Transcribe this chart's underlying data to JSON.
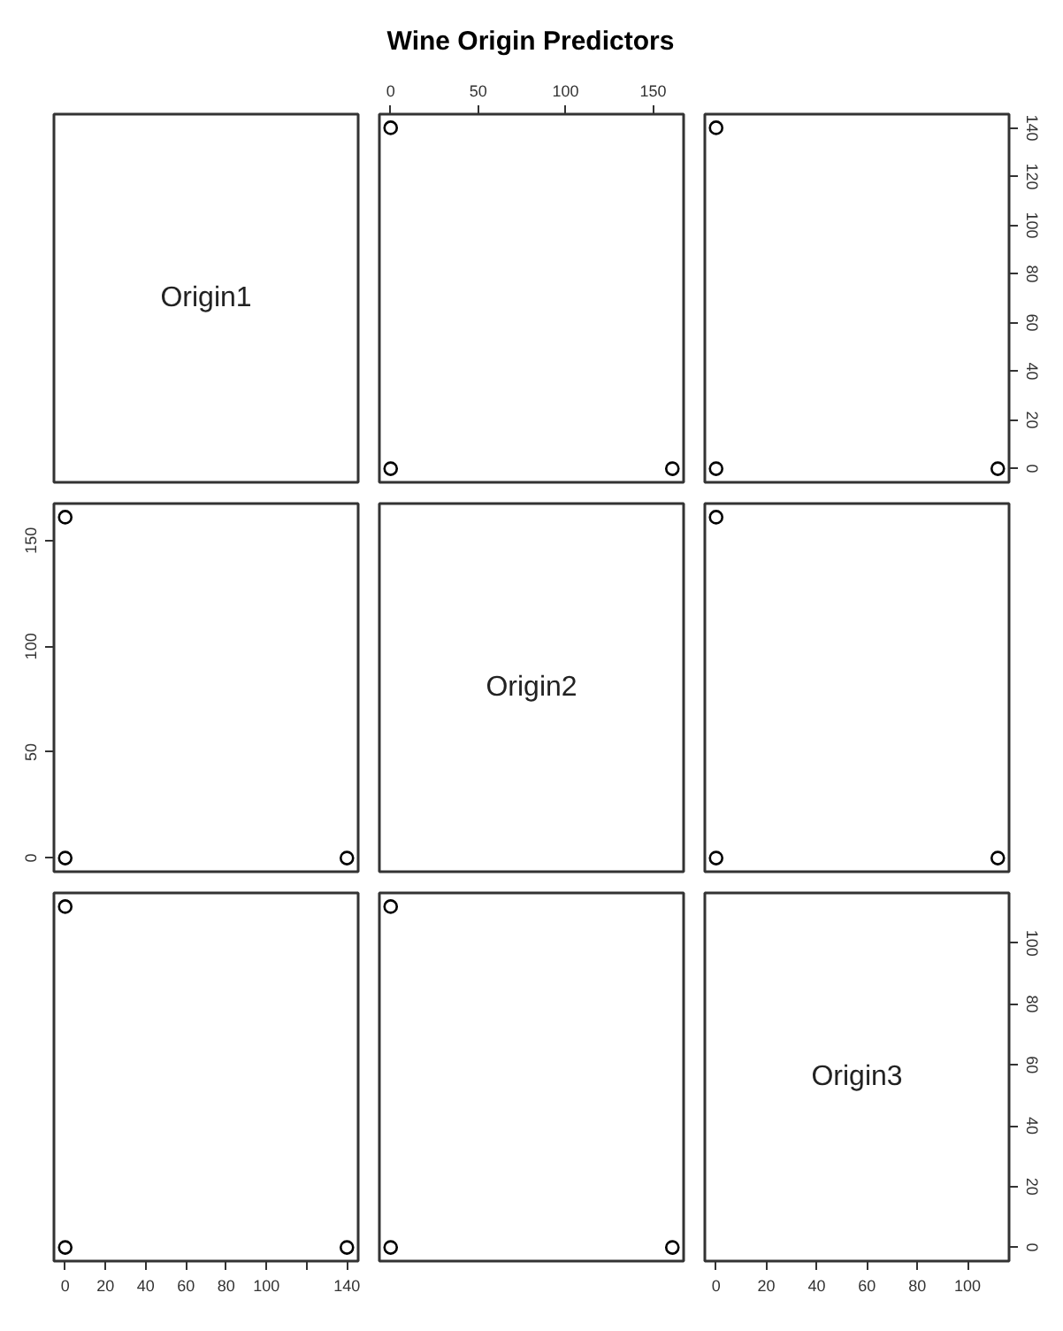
{
  "chart_data": [
    {
      "type": "other",
      "title": "Wine Origin Predictors",
      "annotations": [
        "Origin1"
      ]
    },
    {
      "type": "scatter",
      "marker": "circle",
      "tick_labels": "x",
      "xlim": [
        -6.44,
        167.44
      ],
      "xticks": [
        0,
        50,
        100,
        150
      ],
      "ylim": [
        -5.6,
        145.6
      ],
      "series": [
        {
          "color": "#000000",
          "x": [
            0,
            161,
            0
          ],
          "values": [
            140,
            0,
            0
          ]
        }
      ]
    },
    {
      "type": "scatter",
      "marker": "circle",
      "tick_labels": "y",
      "xlim": [
        -4.48,
        116.48
      ],
      "ylim": [
        -5.6,
        145.6
      ],
      "yticks": [
        0,
        20,
        40,
        60,
        80,
        100,
        120,
        140
      ],
      "series": [
        {
          "color": "#000000",
          "x": [
            0,
            0,
            112
          ],
          "values": [
            140,
            0,
            0
          ]
        }
      ]
    },
    {
      "type": "scatter",
      "marker": "circle",
      "tick_labels": "y",
      "xlim": [
        -5.6,
        145.6
      ],
      "ylim": [
        -6.44,
        167.44
      ],
      "yticks": [
        0,
        50,
        100,
        150
      ],
      "series": [
        {
          "color": "#000000",
          "x": [
            140,
            0,
            0
          ],
          "values": [
            0,
            161,
            0
          ]
        }
      ]
    },
    {
      "type": "other",
      "annotations": [
        "Origin2"
      ]
    },
    {
      "type": "scatter",
      "marker": "circle",
      "tick_labels": false,
      "xlim": [
        -4.48,
        116.48
      ],
      "ylim": [
        -6.44,
        167.44
      ],
      "series": [
        {
          "color": "#000000",
          "x": [
            0,
            0,
            112
          ],
          "values": [
            0,
            161,
            0
          ]
        }
      ]
    },
    {
      "type": "scatter",
      "marker": "circle",
      "tick_labels": "x",
      "xlim": [
        -5.6,
        145.6
      ],
      "xticks": [
        0,
        20,
        40,
        60,
        80,
        100,
        {
          "value": 120,
          "label": null
        },
        140
      ],
      "ylim": [
        -4.48,
        116.48
      ],
      "series": [
        {
          "color": "#000000",
          "x": [
            140,
            0,
            0
          ],
          "values": [
            0,
            0,
            112
          ]
        }
      ]
    },
    {
      "type": "scatter",
      "marker": "circle",
      "tick_labels": false,
      "xlim": [
        -6.44,
        167.44
      ],
      "ylim": [
        -4.48,
        116.48
      ],
      "series": [
        {
          "color": "#000000",
          "x": [
            0,
            161,
            0
          ],
          "values": [
            0,
            0,
            112
          ]
        }
      ]
    },
    {
      "type": "scatter",
      "annotations": [
        "Origin3"
      ],
      "xlim": [
        -4.48,
        116.48
      ],
      "xticks": [
        0,
        20,
        40,
        60,
        80,
        100
      ],
      "ylim": [
        -4.48,
        116.48
      ],
      "yticks": [
        0,
        20,
        40,
        60,
        80,
        100
      ]
    }
  ]
}
